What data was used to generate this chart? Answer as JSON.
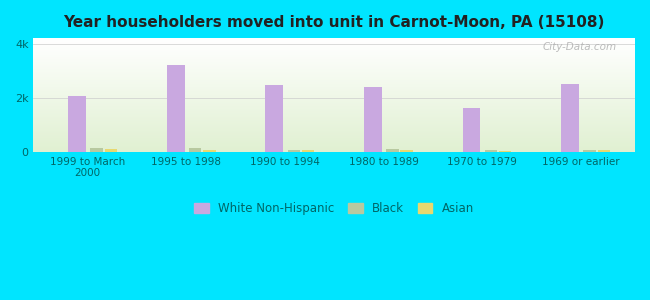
{
  "title": "Year householders moved into unit in Carnot-Moon, PA (15108)",
  "categories": [
    "1999 to March\n2000",
    "1995 to 1998",
    "1990 to 1994",
    "1980 to 1989",
    "1970 to 1979",
    "1969 or earlier"
  ],
  "white": [
    2050,
    3200,
    2450,
    2380,
    1600,
    2500
  ],
  "black": [
    130,
    150,
    55,
    100,
    55,
    75
  ],
  "asian": [
    100,
    55,
    80,
    70,
    30,
    50
  ],
  "white_color": "#c9a8e0",
  "black_color": "#b8c9a0",
  "asian_color": "#e8d870",
  "background_outer": "#00e5ff",
  "title_color": "#222222",
  "ylabel_ticks": [
    "0",
    "2k",
    "4k"
  ],
  "yticks": [
    0,
    2000,
    4000
  ],
  "ylim": [
    0,
    4200
  ],
  "bar_width": 0.18,
  "watermark": "City-Data.com"
}
